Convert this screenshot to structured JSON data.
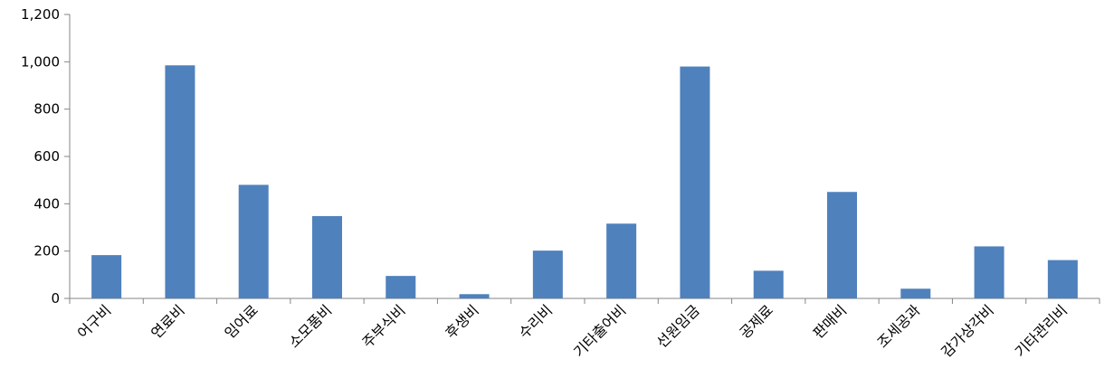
{
  "chart_data": {
    "type": "bar",
    "title": "",
    "xlabel": "",
    "ylabel": "",
    "ylim": [
      0,
      1200
    ],
    "yticks": [
      "0",
      "200",
      "400",
      "600",
      "800",
      "1,000",
      "1,200"
    ],
    "grid": false,
    "legend": "none",
    "categories": [
      "어구비",
      "연료비",
      "임어료",
      "소모품비",
      "주부식비",
      "후생비",
      "수리비",
      "기타출어비",
      "선원임금",
      "공제료",
      "판매비",
      "조세공과",
      "감가상각비",
      "기타관리비"
    ],
    "series": [
      {
        "values": [
          183,
          985,
          480,
          348,
          95,
          18,
          202,
          316,
          980,
          117,
          450,
          41,
          220,
          162
        ]
      }
    ],
    "bar_color": "#4F81BD",
    "axis_color": "#868686"
  }
}
